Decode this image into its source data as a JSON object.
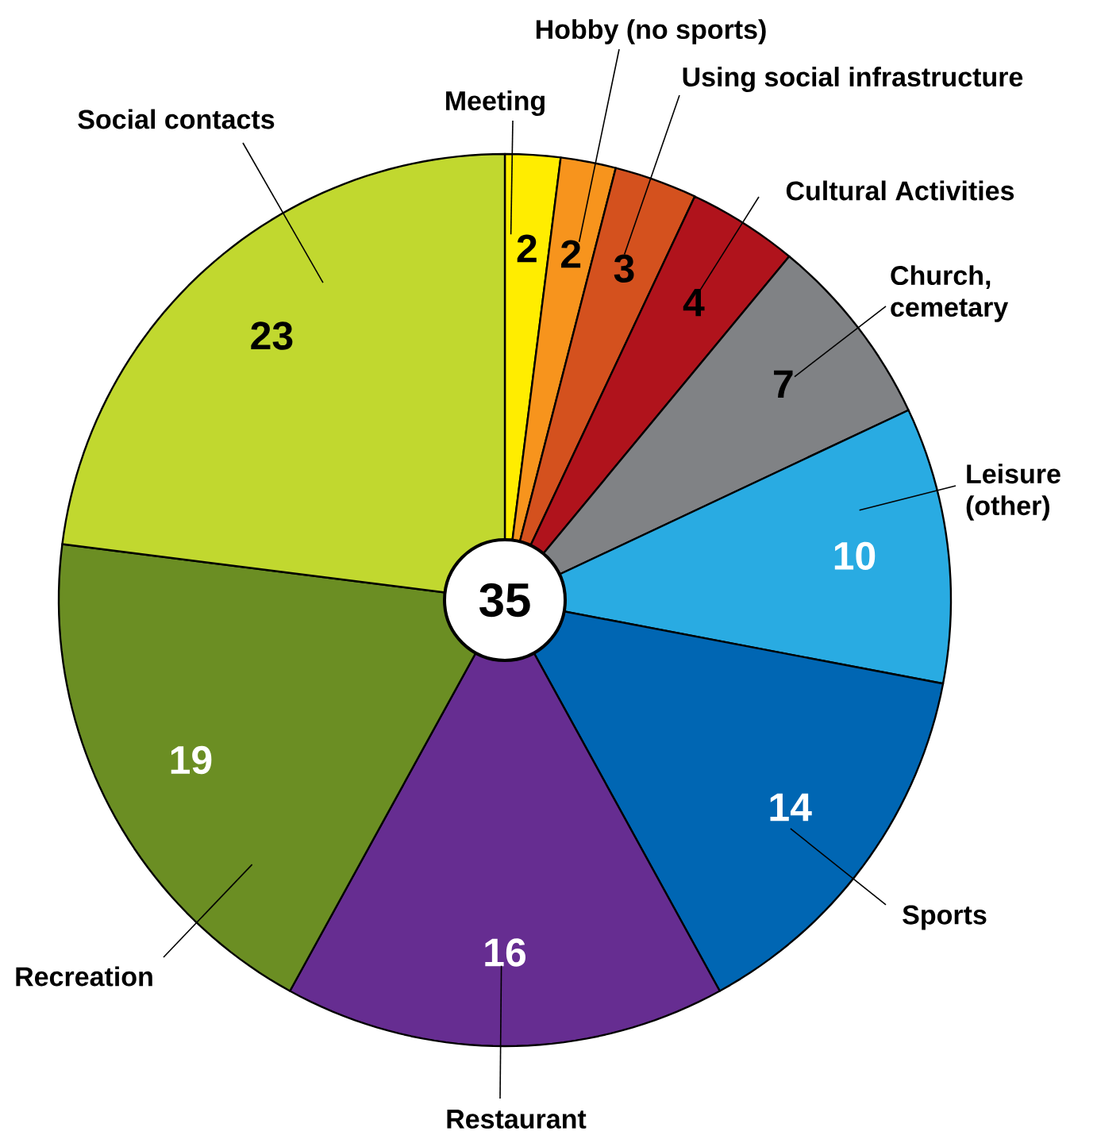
{
  "chart_data": {
    "type": "pie",
    "categories": [
      "Meeting",
      "Hobby (no sports)",
      "Using social infrastructure",
      "Cultural Activities",
      "Church, cemetary",
      "Leisure (other)",
      "Sports",
      "Restaurant",
      "Recreation",
      "Social contacts"
    ],
    "values": [
      2,
      2,
      3,
      4,
      7,
      10,
      14,
      16,
      19,
      23
    ],
    "colors": [
      "#ffed00",
      "#f7941d",
      "#d4511e",
      "#b0131c",
      "#808285",
      "#29abe2",
      "#0066b3",
      "#662d91",
      "#6b8e23",
      "#c1d82f"
    ],
    "data_labels": true,
    "legend": false,
    "annotations": [
      "35"
    ]
  }
}
